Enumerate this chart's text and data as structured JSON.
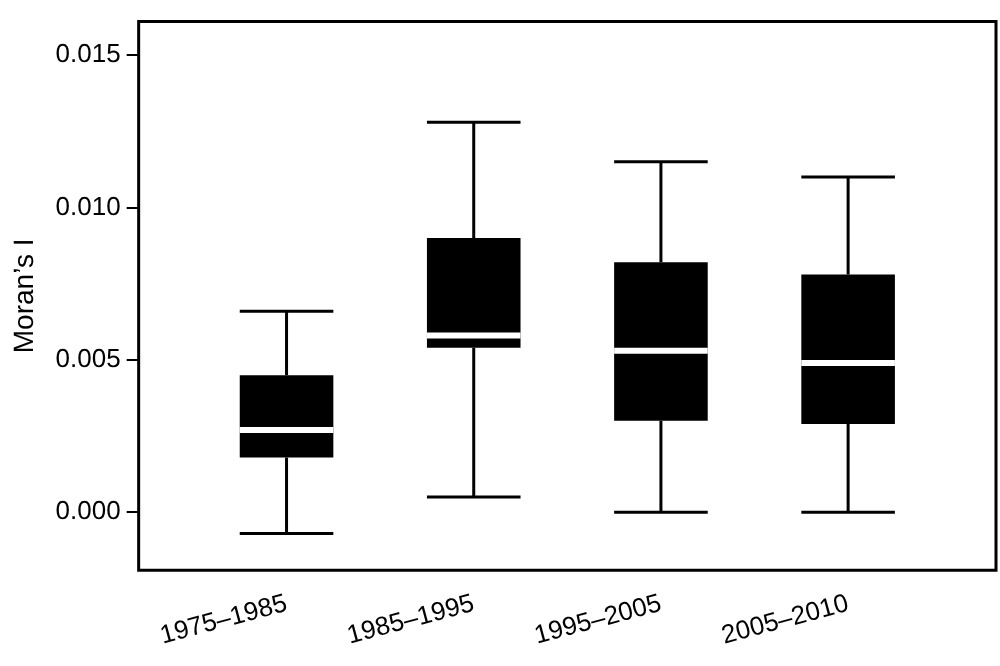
{
  "chart_data": {
    "type": "box",
    "ylabel": "Moran’s I",
    "categories": [
      "1975–1985",
      "1985–1995",
      "1995–2005",
      "2005–2010"
    ],
    "boxes": [
      {
        "low": -0.0007,
        "q1": 0.0018,
        "median": 0.0027,
        "q3": 0.0045,
        "high": 0.0066
      },
      {
        "low": 0.0005,
        "q1": 0.0054,
        "median": 0.0058,
        "q3": 0.009,
        "high": 0.0128
      },
      {
        "low": 0,
        "q1": 0.003,
        "median": 0.0053,
        "q3": 0.0082,
        "high": 0.0115
      },
      {
        "low": 0,
        "q1": 0.0029,
        "median": 0.0049,
        "q3": 0.0078,
        "high": 0.011
      }
    ],
    "color": "#000000",
    "ylim": [
      -0.0019,
      0.0161
    ],
    "yticks": [
      {
        "value": 0,
        "label": "0.000"
      },
      0.005,
      {
        "value": 0.01,
        "label": "0.010"
      },
      0.015
    ],
    "grid": false,
    "legend": false
  }
}
